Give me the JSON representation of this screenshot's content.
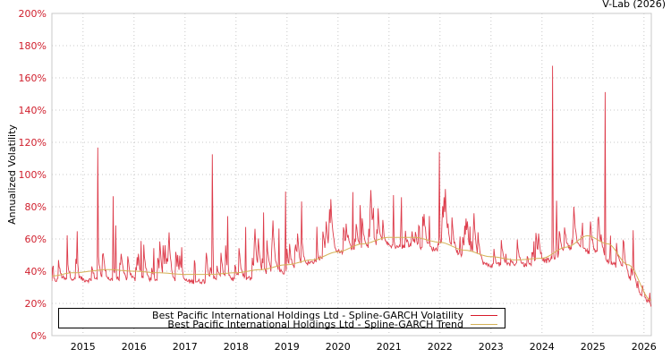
{
  "credit": "V-Lab (2026)",
  "chart_data": {
    "type": "line",
    "title": "",
    "xlabel": "",
    "ylabel": "Annualized Volatility",
    "ylim": [
      0,
      200
    ],
    "xlim": [
      2014.4,
      2026.15
    ],
    "grid": true,
    "legend_position": "lower-center",
    "y_ticks": [
      "0%",
      "20%",
      "40%",
      "60%",
      "80%",
      "100%",
      "120%",
      "140%",
      "160%",
      "180%",
      "200%"
    ],
    "x_ticks": [
      "2015",
      "2016",
      "2017",
      "2018",
      "2019",
      "2020",
      "2021",
      "2022",
      "2023",
      "2024",
      "2025",
      "2026"
    ],
    "series": [
      {
        "name": "Best Pacific International Holdings Ltd - Spline-GARCH Volatility",
        "color": "#d7192a",
        "baseline_knots": [
          [
            2014.4,
            33
          ],
          [
            2015.0,
            33
          ],
          [
            2016.0,
            33
          ],
          [
            2017.0,
            32
          ],
          [
            2018.0,
            33
          ],
          [
            2019.0,
            38
          ],
          [
            2020.0,
            50
          ],
          [
            2021.0,
            54
          ],
          [
            2022.0,
            52
          ],
          [
            2023.0,
            42
          ],
          [
            2023.7,
            42
          ],
          [
            2024.0,
            44
          ],
          [
            2024.6,
            52
          ],
          [
            2025.0,
            50
          ],
          [
            2025.5,
            42
          ],
          [
            2026.0,
            22
          ],
          [
            2026.15,
            17
          ]
        ],
        "spikes": [
          [
            2014.42,
            54
          ],
          [
            2014.7,
            63
          ],
          [
            2014.9,
            80
          ],
          [
            2015.3,
            123
          ],
          [
            2015.6,
            92
          ],
          [
            2015.65,
            82
          ],
          [
            2016.15,
            60
          ],
          [
            2016.4,
            60
          ],
          [
            2016.6,
            58
          ],
          [
            2016.95,
            67
          ],
          [
            2017.2,
            62
          ],
          [
            2017.55,
            147
          ],
          [
            2017.85,
            90
          ],
          [
            2018.2,
            70
          ],
          [
            2018.55,
            83
          ],
          [
            2018.85,
            72
          ],
          [
            2018.98,
            103
          ],
          [
            2019.3,
            106
          ],
          [
            2019.6,
            78
          ],
          [
            2019.85,
            75
          ],
          [
            2020.3,
            93
          ],
          [
            2020.45,
            104
          ],
          [
            2020.7,
            104
          ],
          [
            2021.1,
            96
          ],
          [
            2021.25,
            103
          ],
          [
            2021.6,
            86
          ],
          [
            2021.8,
            80
          ],
          [
            2022.0,
            124
          ],
          [
            2022.4,
            66
          ],
          [
            2022.6,
            70
          ],
          [
            2023.3,
            55
          ],
          [
            2023.85,
            62
          ],
          [
            2024.22,
            195
          ],
          [
            2024.3,
            101
          ],
          [
            2024.45,
            72
          ],
          [
            2024.65,
            72
          ],
          [
            2024.8,
            85
          ],
          [
            2025.25,
            159
          ],
          [
            2025.35,
            70
          ],
          [
            2025.6,
            62
          ],
          [
            2025.8,
            75
          ],
          [
            2026.12,
            31
          ]
        ]
      },
      {
        "name": "Best Pacific International Holdings Ltd - Spline-GARCH Trend",
        "color": "#d4b256",
        "knots": [
          [
            2014.4,
            37
          ],
          [
            2014.8,
            39
          ],
          [
            2015.5,
            41
          ],
          [
            2016.0,
            40
          ],
          [
            2016.5,
            39
          ],
          [
            2017.0,
            38
          ],
          [
            2017.5,
            38
          ],
          [
            2018.0,
            39
          ],
          [
            2018.5,
            41
          ],
          [
            2019.0,
            44
          ],
          [
            2019.5,
            47
          ],
          [
            2020.0,
            52
          ],
          [
            2020.5,
            57
          ],
          [
            2021.0,
            61
          ],
          [
            2021.5,
            61
          ],
          [
            2022.0,
            58
          ],
          [
            2022.5,
            53
          ],
          [
            2023.0,
            49
          ],
          [
            2023.5,
            47
          ],
          [
            2024.0,
            48
          ],
          [
            2024.5,
            55
          ],
          [
            2024.9,
            62
          ],
          [
            2025.3,
            57
          ],
          [
            2025.7,
            44
          ],
          [
            2026.15,
            22
          ]
        ]
      }
    ]
  },
  "legend": {
    "items": [
      {
        "label": "Best Pacific International Holdings Ltd - Spline-GARCH Volatility",
        "color": "#d7192a"
      },
      {
        "label": "Best Pacific International Holdings Ltd - Spline-GARCH Trend",
        "color": "#d4b256"
      }
    ]
  }
}
